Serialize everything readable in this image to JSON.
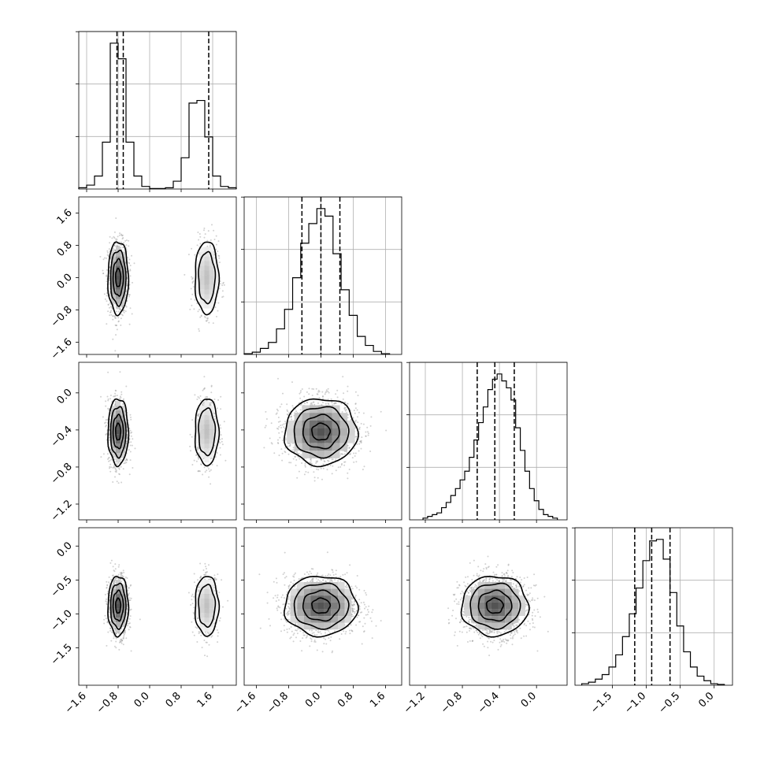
{
  "chart_data": {
    "type": "corner",
    "parameters": 4,
    "grid": true,
    "quantile_lines": "dashed",
    "axis_ranges": [
      [
        -1.8,
        2.2
      ],
      [
        -1.9,
        2.0
      ],
      [
        -1.37,
        0.33
      ],
      [
        -2.05,
        0.27
      ]
    ],
    "x_tick_labels": [
      [
        "−1.6",
        "−0.8",
        "0.0",
        "0.8",
        "1.6"
      ],
      [
        "−1.6",
        "−0.8",
        "0.0",
        "0.8",
        "1.6"
      ],
      [
        "−1.2",
        "−0.8",
        "−0.4",
        "0.0"
      ],
      [
        "−1.5",
        "−1.0",
        "−0.5",
        "0.0"
      ]
    ],
    "y_tick_labels": {
      "row2": [
        "−1.6",
        "−0.8",
        "0.0",
        "0.8",
        "1.6"
      ],
      "row3": [
        "−1.2",
        "−0.8",
        "−0.4",
        "0.0"
      ],
      "row4": [
        "−1.5",
        "−1.0",
        "−0.5",
        "0.0"
      ]
    },
    "histograms": [
      {
        "param": 1,
        "bin_centers": [
          -1.7,
          -1.5,
          -1.3,
          -1.1,
          -0.9,
          -0.7,
          -0.5,
          -0.3,
          -0.1,
          0.1,
          0.3,
          0.5,
          0.7,
          0.9,
          1.1,
          1.3,
          1.5,
          1.7,
          1.9,
          2.1
        ],
        "counts": [
          0.5,
          1.5,
          5,
          18,
          56,
          50,
          18,
          5,
          1,
          0.2,
          0.2,
          0.5,
          3,
          12,
          33,
          34,
          20,
          5,
          1,
          0.5
        ],
        "quantiles": [
          -0.83,
          -0.67,
          1.5
        ]
      },
      {
        "param": 2,
        "bin_centers": [
          -1.8,
          -1.6,
          -1.4,
          -1.2,
          -1.0,
          -0.8,
          -0.6,
          -0.4,
          -0.2,
          0.0,
          0.2,
          0.4,
          0.6,
          0.8,
          1.0,
          1.2,
          1.4,
          1.6
        ],
        "counts": [
          0.5,
          1.5,
          4,
          8,
          17,
          30,
          51,
          74,
          87,
          97,
          92,
          67,
          43,
          26,
          12,
          6,
          2,
          0.5
        ],
        "quantiles": [
          -0.47,
          0.0,
          0.47
        ]
      },
      {
        "param": 3,
        "bin_centers": [
          -1.2,
          -1.15,
          -1.1,
          -1.05,
          -1.0,
          -0.95,
          -0.9,
          -0.85,
          -0.8,
          -0.75,
          -0.7,
          -0.65,
          -0.6,
          -0.55,
          -0.5,
          -0.45,
          -0.4,
          -0.35,
          -0.3,
          -0.25,
          -0.2,
          -0.15,
          -0.1,
          -0.05,
          0.0,
          0.05,
          0.1,
          0.15,
          0.2
        ],
        "counts": [
          1,
          2,
          3,
          4,
          7,
          10,
          14,
          18,
          23,
          28,
          36,
          46,
          56,
          65,
          75,
          81,
          84,
          80,
          76,
          69,
          53,
          40,
          28,
          18,
          11,
          6,
          3,
          2,
          1
        ],
        "quantiles": [
          -0.64,
          -0.45,
          -0.24
        ]
      },
      {
        "param": 4,
        "bin_centers": [
          -1.9,
          -1.8,
          -1.7,
          -1.6,
          -1.5,
          -1.4,
          -1.3,
          -1.2,
          -1.1,
          -1.0,
          -0.9,
          -0.8,
          -0.7,
          -0.6,
          -0.5,
          -0.4,
          -0.3,
          -0.2,
          -0.1,
          0.0,
          0.1
        ],
        "counts": [
          1,
          2,
          4,
          7,
          12,
          20,
          32,
          47,
          64,
          82,
          95,
          96,
          83,
          61,
          39,
          22,
          12,
          6,
          3,
          1,
          0.5
        ],
        "quantiles": [
          -1.17,
          -0.92,
          -0.65
        ]
      }
    ],
    "pair_densities": [
      {
        "x_param": 1,
        "y_param": 2,
        "modes": [
          {
            "center": [
              -0.8,
              0.0
            ],
            "sigma": [
              0.13,
              0.45
            ],
            "weight": 1.0
          },
          {
            "center": [
              1.45,
              0.0
            ],
            "sigma": [
              0.15,
              0.45
            ],
            "weight": 0.55
          }
        ]
      },
      {
        "x_param": 1,
        "y_param": 3,
        "modes": [
          {
            "center": [
              -0.8,
              -0.42
            ],
            "sigma": [
              0.13,
              0.18
            ],
            "weight": 1.0
          },
          {
            "center": [
              1.45,
              -0.42
            ],
            "sigma": [
              0.15,
              0.18
            ],
            "weight": 0.55
          }
        ]
      },
      {
        "x_param": 1,
        "y_param": 4,
        "modes": [
          {
            "center": [
              -0.8,
              -0.88
            ],
            "sigma": [
              0.13,
              0.22
            ],
            "weight": 1.0
          },
          {
            "center": [
              1.45,
              -0.88
            ],
            "sigma": [
              0.15,
              0.22
            ],
            "weight": 0.55
          }
        ]
      },
      {
        "x_param": 2,
        "y_param": 3,
        "modes": [
          {
            "center": [
              0.0,
              -0.42
            ],
            "sigma": [
              0.45,
              0.18
            ],
            "weight": 1.0
          }
        ]
      },
      {
        "x_param": 2,
        "y_param": 4,
        "modes": [
          {
            "center": [
              0.0,
              -0.88
            ],
            "sigma": [
              0.45,
              0.22
            ],
            "weight": 1.0
          }
        ]
      },
      {
        "x_param": 3,
        "y_param": 4,
        "modes": [
          {
            "center": [
              -0.45,
              -0.88
            ],
            "sigma": [
              0.18,
              0.22
            ],
            "weight": 1.0
          }
        ]
      }
    ]
  }
}
